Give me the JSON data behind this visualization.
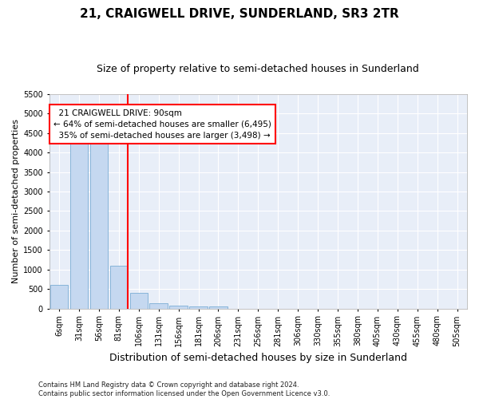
{
  "title1": "21, CRAIGWELL DRIVE, SUNDERLAND, SR3 2TR",
  "title2": "Size of property relative to semi-detached houses in Sunderland",
  "xlabel": "Distribution of semi-detached houses by size in Sunderland",
  "ylabel": "Number of semi-detached properties",
  "footnote": "Contains HM Land Registry data © Crown copyright and database right 2024.\nContains public sector information licensed under the Open Government Licence v3.0.",
  "categories": [
    "6sqm",
    "31sqm",
    "56sqm",
    "81sqm",
    "106sqm",
    "131sqm",
    "156sqm",
    "181sqm",
    "206sqm",
    "231sqm",
    "256sqm",
    "281sqm",
    "306sqm",
    "330sqm",
    "355sqm",
    "380sqm",
    "405sqm",
    "430sqm",
    "455sqm",
    "480sqm",
    "505sqm"
  ],
  "values": [
    600,
    4250,
    4500,
    1100,
    400,
    130,
    65,
    55,
    50,
    0,
    0,
    0,
    0,
    0,
    0,
    0,
    0,
    0,
    0,
    0,
    0
  ],
  "bar_color": "#c5d8f0",
  "bar_edge_color": "#7badd4",
  "ylim": [
    0,
    5500
  ],
  "yticks": [
    0,
    500,
    1000,
    1500,
    2000,
    2500,
    3000,
    3500,
    4000,
    4500,
    5000,
    5500
  ],
  "red_line_x": 3.45,
  "annotation_text": "  21 CRAIGWELL DRIVE: 90sqm\n← 64% of semi-detached houses are smaller (6,495)\n  35% of semi-detached houses are larger (3,498) →",
  "background_color": "#e8eef8",
  "grid_color": "#ffffff",
  "title1_fontsize": 11,
  "title2_fontsize": 9,
  "xlabel_fontsize": 9,
  "ylabel_fontsize": 8,
  "tick_fontsize": 7,
  "annotation_fontsize": 7.5,
  "footnote_fontsize": 6
}
